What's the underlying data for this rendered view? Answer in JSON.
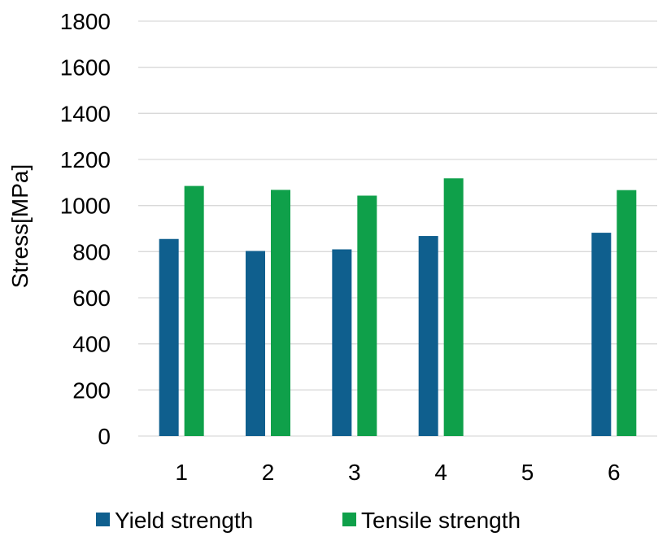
{
  "chart_data": {
    "type": "bar",
    "categories": [
      "1",
      "2",
      "3",
      "4",
      "5",
      "6"
    ],
    "series": [
      {
        "name": "Yield strength",
        "values": [
          855,
          803,
          810,
          868,
          null,
          882
        ],
        "color": "#0F5F8E"
      },
      {
        "name": "Tensile strength",
        "values": [
          1085,
          1068,
          1043,
          1118,
          null,
          1067
        ],
        "color": "#0FA04A"
      }
    ],
    "title": "",
    "xlabel": "",
    "ylabel": "Stress[MPa]",
    "ylim": [
      0,
      1800
    ],
    "yticks": [
      "0",
      "200",
      "400",
      "600",
      "800",
      "1000",
      "1200",
      "1400",
      "1600",
      "1800"
    ],
    "grid": true,
    "legend_position": "bottom"
  }
}
